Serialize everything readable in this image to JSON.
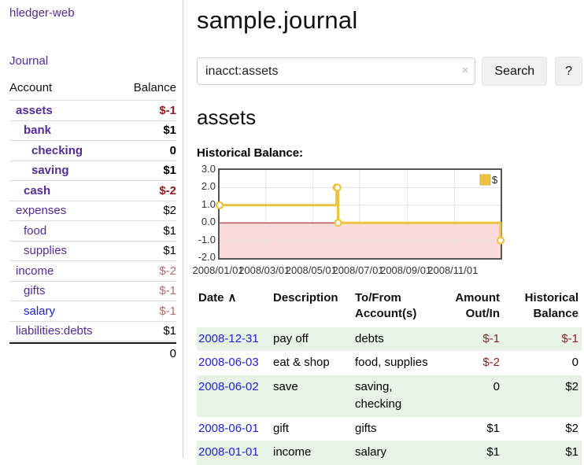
{
  "app": {
    "brand": "hledger-web"
  },
  "sidebar": {
    "journal_link": "Journal",
    "headers": {
      "account": "Account",
      "balance": "Balance"
    },
    "accounts": [
      {
        "account": "assets",
        "balance": "$-1",
        "level": 1,
        "bold": true,
        "balance_style": "neg"
      },
      {
        "account": "bank",
        "balance": "$1",
        "level": 2,
        "bold": true,
        "balance_style": "pos"
      },
      {
        "account": "checking",
        "balance": "0",
        "level": 3,
        "bold": true,
        "balance_style": "pos"
      },
      {
        "account": "saving",
        "balance": "$1",
        "level": 3,
        "bold": true,
        "balance_style": "pos"
      },
      {
        "account": "cash",
        "balance": "$-2",
        "level": 2,
        "bold": true,
        "balance_style": "neg"
      },
      {
        "account": "expenses",
        "balance": "$2",
        "level": 1,
        "bold": false,
        "balance_style": "pos"
      },
      {
        "account": "food",
        "balance": "$1",
        "level": 2,
        "bold": false,
        "balance_style": "pos"
      },
      {
        "account": "supplies",
        "balance": "$1",
        "level": 2,
        "bold": false,
        "balance_style": "pos"
      },
      {
        "account": "income",
        "balance": "$-2",
        "level": 1,
        "bold": false,
        "balance_style": "neg-soft"
      },
      {
        "account": "gifts",
        "balance": "$-1",
        "level": 2,
        "bold": false,
        "balance_style": "neg-soft"
      },
      {
        "account": "salary",
        "balance": "$-1",
        "level": 2,
        "bold": false,
        "balance_style": "neg-soft",
        "link_style": "blue"
      },
      {
        "account": "liabilities:debts",
        "balance": "$1",
        "level": 1,
        "bold": false,
        "balance_style": "pos"
      }
    ],
    "total": "0"
  },
  "main": {
    "title": "sample.journal",
    "search": {
      "value": "inacct:assets",
      "clear_icon": "×",
      "button_label": "Search",
      "help_label": "?"
    },
    "account_heading": "assets",
    "chart_label": "Historical Balance:"
  },
  "chart_data": {
    "type": "line",
    "title": "Historical Balance:",
    "x_range": [
      "2008-01-01",
      "2008-12-31"
    ],
    "ylim": [
      -2,
      3
    ],
    "y_ticks": [
      3.0,
      2.0,
      1.0,
      0.0,
      -1.0,
      -2.0
    ],
    "x_ticks": [
      "2008/01/01",
      "2008/03/01",
      "2008/05/01",
      "2008/07/01",
      "2008/09/01",
      "2008/11/01"
    ],
    "grid": true,
    "grid_color": "#e3e3e3",
    "negative_region_fill": "#fbdada",
    "zero_line_color": "#a21010",
    "legend": {
      "position": "top-right",
      "label": "$"
    },
    "series": [
      {
        "name": "$",
        "color": "#EDC240",
        "marker_border": "#d9b33c",
        "step": true,
        "points": [
          {
            "date": "2008-01-01",
            "value": 1
          },
          {
            "date": "2008-06-01",
            "value": 2
          },
          {
            "date": "2008-06-02",
            "value": 2
          },
          {
            "date": "2008-06-03",
            "value": 0
          },
          {
            "date": "2008-12-31",
            "value": -1
          }
        ]
      }
    ]
  },
  "register": {
    "headers": [
      {
        "label": "Date"
      },
      {
        "label": "Description"
      },
      {
        "label": "To/From Account(s)"
      },
      {
        "label": "Amount Out/In"
      },
      {
        "label": "Historical Balance"
      }
    ],
    "sort_icon": "∧",
    "rows": [
      {
        "date": "2008-12-31",
        "description": "pay off",
        "accounts": "debts",
        "amount": "$-1",
        "balance": "$-1",
        "amount_negative": true,
        "balance_negative": true
      },
      {
        "date": "2008-06-03",
        "description": "eat & shop",
        "accounts": "food, supplies",
        "amount": "$-2",
        "balance": "0",
        "amount_negative": true,
        "balance_negative": false
      },
      {
        "date": "2008-06-02",
        "description": "save",
        "accounts": "saving, checking",
        "amount": "0",
        "balance": "$2",
        "amount_negative": false,
        "balance_negative": false
      },
      {
        "date": "2008-06-01",
        "description": "gift",
        "accounts": "gifts",
        "amount": "$1",
        "balance": "$2",
        "amount_negative": false,
        "balance_negative": false
      },
      {
        "date": "2008-01-01",
        "description": "income",
        "accounts": "salary",
        "amount": "$1",
        "balance": "$1",
        "amount_negative": false,
        "balance_negative": false
      }
    ]
  }
}
